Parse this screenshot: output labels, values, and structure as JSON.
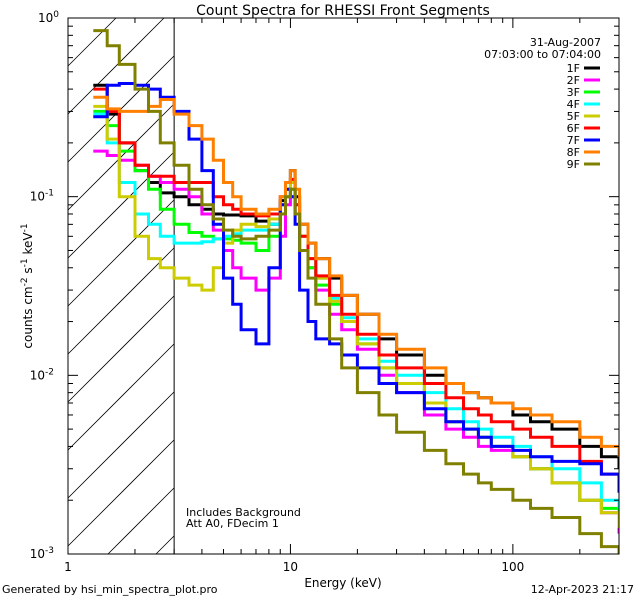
{
  "chart_data": {
    "type": "line",
    "title": "Count Spectra for RHESSI Front Segments",
    "xlabel": "Energy (keV)",
    "ylabel": "counts cm",
    "ylabel_sup1": "-2",
    "ylabel_mid": " s",
    "ylabel_sup2": "-1",
    "ylabel_end": " keV",
    "ylabel_sup3": "-1",
    "x_scale": "log",
    "y_scale": "log",
    "xlim": [
      1,
      300
    ],
    "ylim": [
      0.001,
      1
    ],
    "x_ticks": [
      {
        "value": 1,
        "label": "1"
      },
      {
        "value": 10,
        "label": "10"
      },
      {
        "value": 100,
        "label": "100"
      }
    ],
    "y_ticks": [
      {
        "value": 1,
        "base": "10",
        "exp": "0"
      },
      {
        "value": 0.1,
        "base": "10",
        "exp": "-1"
      },
      {
        "value": 0.01,
        "base": "10",
        "exp": "-2"
      },
      {
        "value": 0.001,
        "base": "10",
        "exp": "-3"
      }
    ],
    "hatch_region": {
      "x_from": 1,
      "x_to": 3
    },
    "date": "31-Aug-2007",
    "time_range": "07:03:00 to 07:04:00",
    "notes": [
      "Includes Background",
      "Att A0, FDecim 1"
    ],
    "series": [
      {
        "name": "1F",
        "color": "#000000",
        "x": [
          1.3,
          1.5,
          1.7,
          2,
          2.3,
          2.6,
          3,
          3.5,
          4,
          4.5,
          5,
          5.5,
          6,
          7,
          8,
          9,
          9.5,
          10,
          10.5,
          11,
          12,
          13,
          15,
          17,
          20,
          25,
          30,
          40,
          50,
          60,
          70,
          80,
          100,
          120,
          150,
          200,
          250,
          300
        ],
        "y": [
          0.42,
          0.29,
          0.2,
          0.14,
          0.12,
          0.105,
          0.1,
          0.09,
          0.085,
          0.08,
          0.079,
          0.079,
          0.078,
          0.073,
          0.07,
          0.095,
          0.12,
          0.14,
          0.1,
          0.07,
          0.055,
          0.045,
          0.035,
          0.028,
          0.022,
          0.016,
          0.013,
          0.01,
          0.009,
          0.008,
          0.0075,
          0.007,
          0.006,
          0.0055,
          0.005,
          0.004,
          0.0035,
          0.003
        ]
      },
      {
        "name": "2F",
        "color": "#ff00ff",
        "x": [
          1.3,
          1.5,
          1.7,
          2,
          2.3,
          2.6,
          3,
          3.5,
          4,
          4.5,
          5,
          5.5,
          6,
          7,
          8,
          9,
          9.5,
          10,
          10.5,
          11,
          12,
          13,
          15,
          17,
          20,
          25,
          30,
          40,
          50,
          60,
          70,
          80,
          100,
          120,
          150,
          200,
          250,
          300
        ],
        "y": [
          0.18,
          0.17,
          0.16,
          0.15,
          0.13,
          0.12,
          0.11,
          0.1,
          0.08,
          0.065,
          0.05,
          0.04,
          0.035,
          0.03,
          0.035,
          0.06,
          0.09,
          0.1,
          0.08,
          0.05,
          0.04,
          0.03,
          0.022,
          0.018,
          0.014,
          0.01,
          0.008,
          0.006,
          0.005,
          0.0045,
          0.004,
          0.0038,
          0.0035,
          0.003,
          0.0025,
          0.002,
          0.0017,
          0.0013
        ]
      },
      {
        "name": "3F",
        "color": "#00ff00",
        "x": [
          1.3,
          1.5,
          1.7,
          2,
          2.3,
          2.6,
          3,
          3.5,
          4,
          4.5,
          5,
          5.5,
          6,
          7,
          8,
          9,
          9.5,
          10,
          10.5,
          11,
          12,
          13,
          15,
          17,
          20,
          25,
          30,
          40,
          50,
          60,
          70,
          80,
          100,
          120,
          150,
          200,
          250,
          300
        ],
        "y": [
          0.3,
          0.25,
          0.18,
          0.14,
          0.11,
          0.085,
          0.07,
          0.063,
          0.06,
          0.058,
          0.058,
          0.057,
          0.055,
          0.05,
          0.06,
          0.08,
          0.1,
          0.11,
          0.08,
          0.05,
          0.04,
          0.032,
          0.025,
          0.02,
          0.015,
          0.011,
          0.009,
          0.007,
          0.0055,
          0.005,
          0.0045,
          0.004,
          0.0035,
          0.003,
          0.0025,
          0.002,
          0.0018,
          0.0015
        ]
      },
      {
        "name": "4F",
        "color": "#00ffff",
        "x": [
          1.3,
          1.5,
          1.7,
          2,
          2.3,
          2.6,
          3,
          3.5,
          4,
          4.5,
          5,
          5.5,
          6,
          7,
          8,
          9,
          9.5,
          10,
          10.5,
          11,
          12,
          13,
          15,
          17,
          20,
          25,
          30,
          40,
          50,
          60,
          70,
          80,
          100,
          120,
          150,
          200,
          250,
          300
        ],
        "y": [
          0.29,
          0.2,
          0.12,
          0.08,
          0.07,
          0.06,
          0.055,
          0.055,
          0.056,
          0.058,
          0.06,
          0.062,
          0.065,
          0.065,
          0.07,
          0.09,
          0.11,
          0.12,
          0.09,
          0.06,
          0.045,
          0.035,
          0.027,
          0.021,
          0.016,
          0.012,
          0.01,
          0.008,
          0.0065,
          0.0055,
          0.005,
          0.0045,
          0.004,
          0.0035,
          0.003,
          0.0025,
          0.002,
          0.0018
        ]
      },
      {
        "name": "5F",
        "color": "#cccc00",
        "x": [
          1.3,
          1.5,
          1.7,
          2,
          2.3,
          2.6,
          3,
          3.5,
          4,
          4.5,
          5,
          5.5,
          6,
          7,
          8,
          9,
          9.5,
          10,
          10.5,
          11,
          12,
          13,
          15,
          17,
          20,
          25,
          30,
          40,
          50,
          60,
          70,
          80,
          100,
          120,
          150,
          200,
          250,
          300
        ],
        "y": [
          0.32,
          0.21,
          0.1,
          0.06,
          0.045,
          0.04,
          0.035,
          0.032,
          0.03,
          0.04,
          0.055,
          0.065,
          0.07,
          0.068,
          0.075,
          0.09,
          0.11,
          0.12,
          0.09,
          0.06,
          0.045,
          0.035,
          0.026,
          0.02,
          0.015,
          0.011,
          0.009,
          0.007,
          0.0055,
          0.005,
          0.0045,
          0.004,
          0.0035,
          0.003,
          0.0025,
          0.002,
          0.0017,
          0.0014
        ]
      },
      {
        "name": "6F",
        "color": "#ff0000",
        "x": [
          1.3,
          1.5,
          1.7,
          2,
          2.3,
          2.6,
          3,
          3.5,
          4,
          4.5,
          5,
          5.5,
          6,
          7,
          8,
          9,
          9.5,
          10,
          10.5,
          11,
          12,
          13,
          15,
          17,
          20,
          25,
          30,
          40,
          50,
          60,
          70,
          80,
          100,
          120,
          150,
          200,
          250,
          300
        ],
        "y": [
          0.4,
          0.3,
          0.2,
          0.15,
          0.13,
          0.13,
          0.12,
          0.12,
          0.12,
          0.1,
          0.09,
          0.085,
          0.08,
          0.078,
          0.08,
          0.1,
          0.12,
          0.125,
          0.09,
          0.06,
          0.045,
          0.036,
          0.028,
          0.022,
          0.017,
          0.013,
          0.011,
          0.009,
          0.0075,
          0.0065,
          0.006,
          0.0055,
          0.005,
          0.0045,
          0.004,
          0.0033,
          0.0028,
          0.0024
        ]
      },
      {
        "name": "7F",
        "color": "#0000ff",
        "x": [
          1.3,
          1.5,
          1.7,
          2,
          2.3,
          2.6,
          3,
          3.5,
          4,
          4.5,
          5,
          5.5,
          6,
          7,
          8,
          9,
          9.5,
          10,
          10.5,
          11,
          12,
          13,
          15,
          17,
          20,
          25,
          30,
          40,
          50,
          60,
          70,
          80,
          100,
          120,
          150,
          200,
          250,
          300
        ],
        "y": [
          0.28,
          0.42,
          0.43,
          0.42,
          0.4,
          0.36,
          0.3,
          0.21,
          0.14,
          0.07,
          0.035,
          0.025,
          0.018,
          0.015,
          0.04,
          0.09,
          0.11,
          0.1,
          0.07,
          0.03,
          0.02,
          0.016,
          0.015,
          0.013,
          0.011,
          0.009,
          0.008,
          0.0065,
          0.0055,
          0.005,
          0.0045,
          0.004,
          0.0038,
          0.0035,
          0.0033,
          0.0032,
          0.0028,
          0.0022
        ]
      },
      {
        "name": "8F",
        "color": "#ff8000",
        "x": [
          1.3,
          1.5,
          1.7,
          2,
          2.3,
          2.6,
          3,
          3.5,
          4,
          4.5,
          5,
          5.5,
          6,
          7,
          8,
          9,
          9.5,
          10,
          10.5,
          11,
          12,
          13,
          15,
          17,
          20,
          25,
          30,
          40,
          50,
          60,
          70,
          80,
          100,
          120,
          150,
          200,
          250,
          300
        ],
        "y": [
          0.36,
          0.31,
          0.3,
          0.3,
          0.32,
          0.35,
          0.29,
          0.25,
          0.21,
          0.16,
          0.12,
          0.1,
          0.085,
          0.08,
          0.085,
          0.1,
          0.12,
          0.14,
          0.11,
          0.07,
          0.055,
          0.045,
          0.036,
          0.028,
          0.022,
          0.017,
          0.014,
          0.011,
          0.009,
          0.008,
          0.0075,
          0.007,
          0.0065,
          0.006,
          0.0055,
          0.0045,
          0.004,
          0.0035
        ]
      },
      {
        "name": "9F",
        "color": "#808000",
        "x": [
          1.3,
          1.5,
          1.7,
          2,
          2.3,
          2.6,
          3,
          3.5,
          4,
          4.5,
          5,
          5.5,
          6,
          7,
          8,
          9,
          9.5,
          10,
          10.5,
          11,
          12,
          13,
          15,
          17,
          20,
          25,
          30,
          40,
          50,
          60,
          70,
          80,
          100,
          120,
          150,
          200,
          250,
          300
        ],
        "y": [
          0.85,
          0.7,
          0.55,
          0.4,
          0.3,
          0.2,
          0.15,
          0.11,
          0.09,
          0.075,
          0.065,
          0.06,
          0.058,
          0.06,
          0.065,
          0.08,
          0.1,
          0.11,
          0.08,
          0.05,
          0.035,
          0.025,
          0.016,
          0.011,
          0.008,
          0.006,
          0.0048,
          0.0038,
          0.0032,
          0.0028,
          0.0025,
          0.0023,
          0.002,
          0.0018,
          0.0016,
          0.0013,
          0.0011,
          0.001
        ]
      }
    ]
  },
  "footer": {
    "generated_by": "Generated by hsi_min_spectra_plot.pro",
    "timestamp": "12-Apr-2023 21:17"
  }
}
